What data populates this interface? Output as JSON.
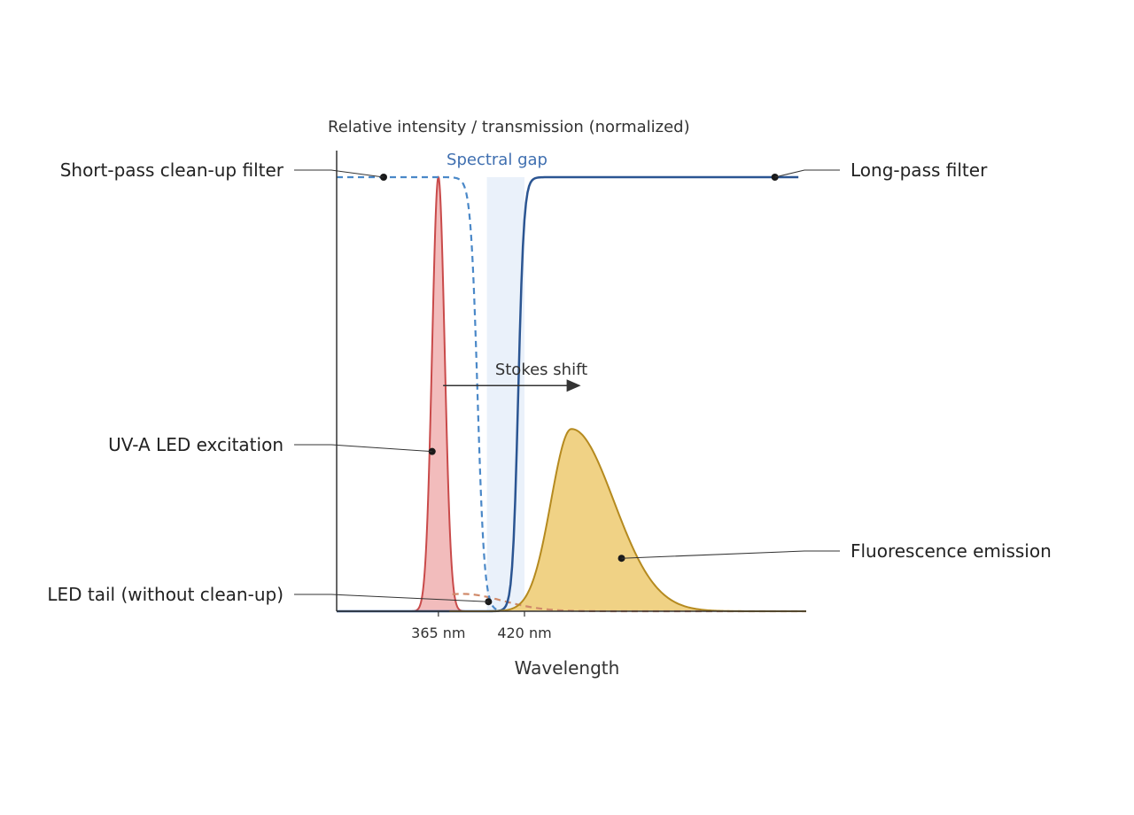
{
  "chart_data": {
    "type": "line",
    "title": "",
    "xlabel": "Wavelength",
    "ylabel": "Relative intensity / transmission (normalized)",
    "xlim": [
      300,
      600
    ],
    "ylim": [
      0,
      1
    ],
    "x_ticks": [
      {
        "value": 365,
        "label": "365 nm"
      },
      {
        "value": 420,
        "label": "420 nm"
      }
    ],
    "grid": false,
    "legend": "none",
    "series": [
      {
        "name": "UV-A LED excitation",
        "kind": "area",
        "peak": 365,
        "sigma": 4,
        "amplitude": 1.0,
        "color": "#c94a4a",
        "fill": "#f2bcbc"
      },
      {
        "name": "LED tail (without clean-up)",
        "kind": "dashed",
        "peak": 380,
        "sigma": 26,
        "amplitude": 0.04,
        "color": "#d08a6a"
      },
      {
        "name": "Short-pass clean-up filter",
        "kind": "dashed",
        "edge": 390,
        "width": 2.2,
        "amplitude": 1.0,
        "color": "#4a88c8"
      },
      {
        "name": "Long-pass filter",
        "kind": "line",
        "edge": 416,
        "width": 1.8,
        "amplitude": 1.0,
        "color": "#2b5592"
      },
      {
        "name": "Fluorescence emission",
        "kind": "area",
        "peak": 450,
        "sigma_left": 13,
        "sigma_right": 27,
        "amplitude": 0.42,
        "color": "#b58a1f",
        "fill": "#f0d285"
      }
    ],
    "annotations": {
      "gap_label": "Spectral gap",
      "gap_range": [
        396,
        420
      ],
      "gap_color": "#eaf1fa",
      "gap_label_color": "#3f6fb0",
      "stokes_label": "Stokes shift",
      "stokes_from": 368,
      "stokes_to": 456,
      "stokes_y": 0.52
    },
    "callouts": [
      {
        "label": "Short-pass clean-up filter",
        "side": "left",
        "x": 330,
        "y": 1.0
      },
      {
        "label": "UV-A LED excitation",
        "side": "left",
        "x": 361,
        "y": 0.368
      },
      {
        "label": "LED tail (without clean-up)",
        "side": "left",
        "x": 397,
        "y": 0.022
      },
      {
        "label": "Long-pass filter",
        "side": "right",
        "x": 580,
        "y": 1.0
      },
      {
        "label": "Fluorescence emission",
        "side": "right",
        "x": 482,
        "y": 0.122
      }
    ]
  }
}
